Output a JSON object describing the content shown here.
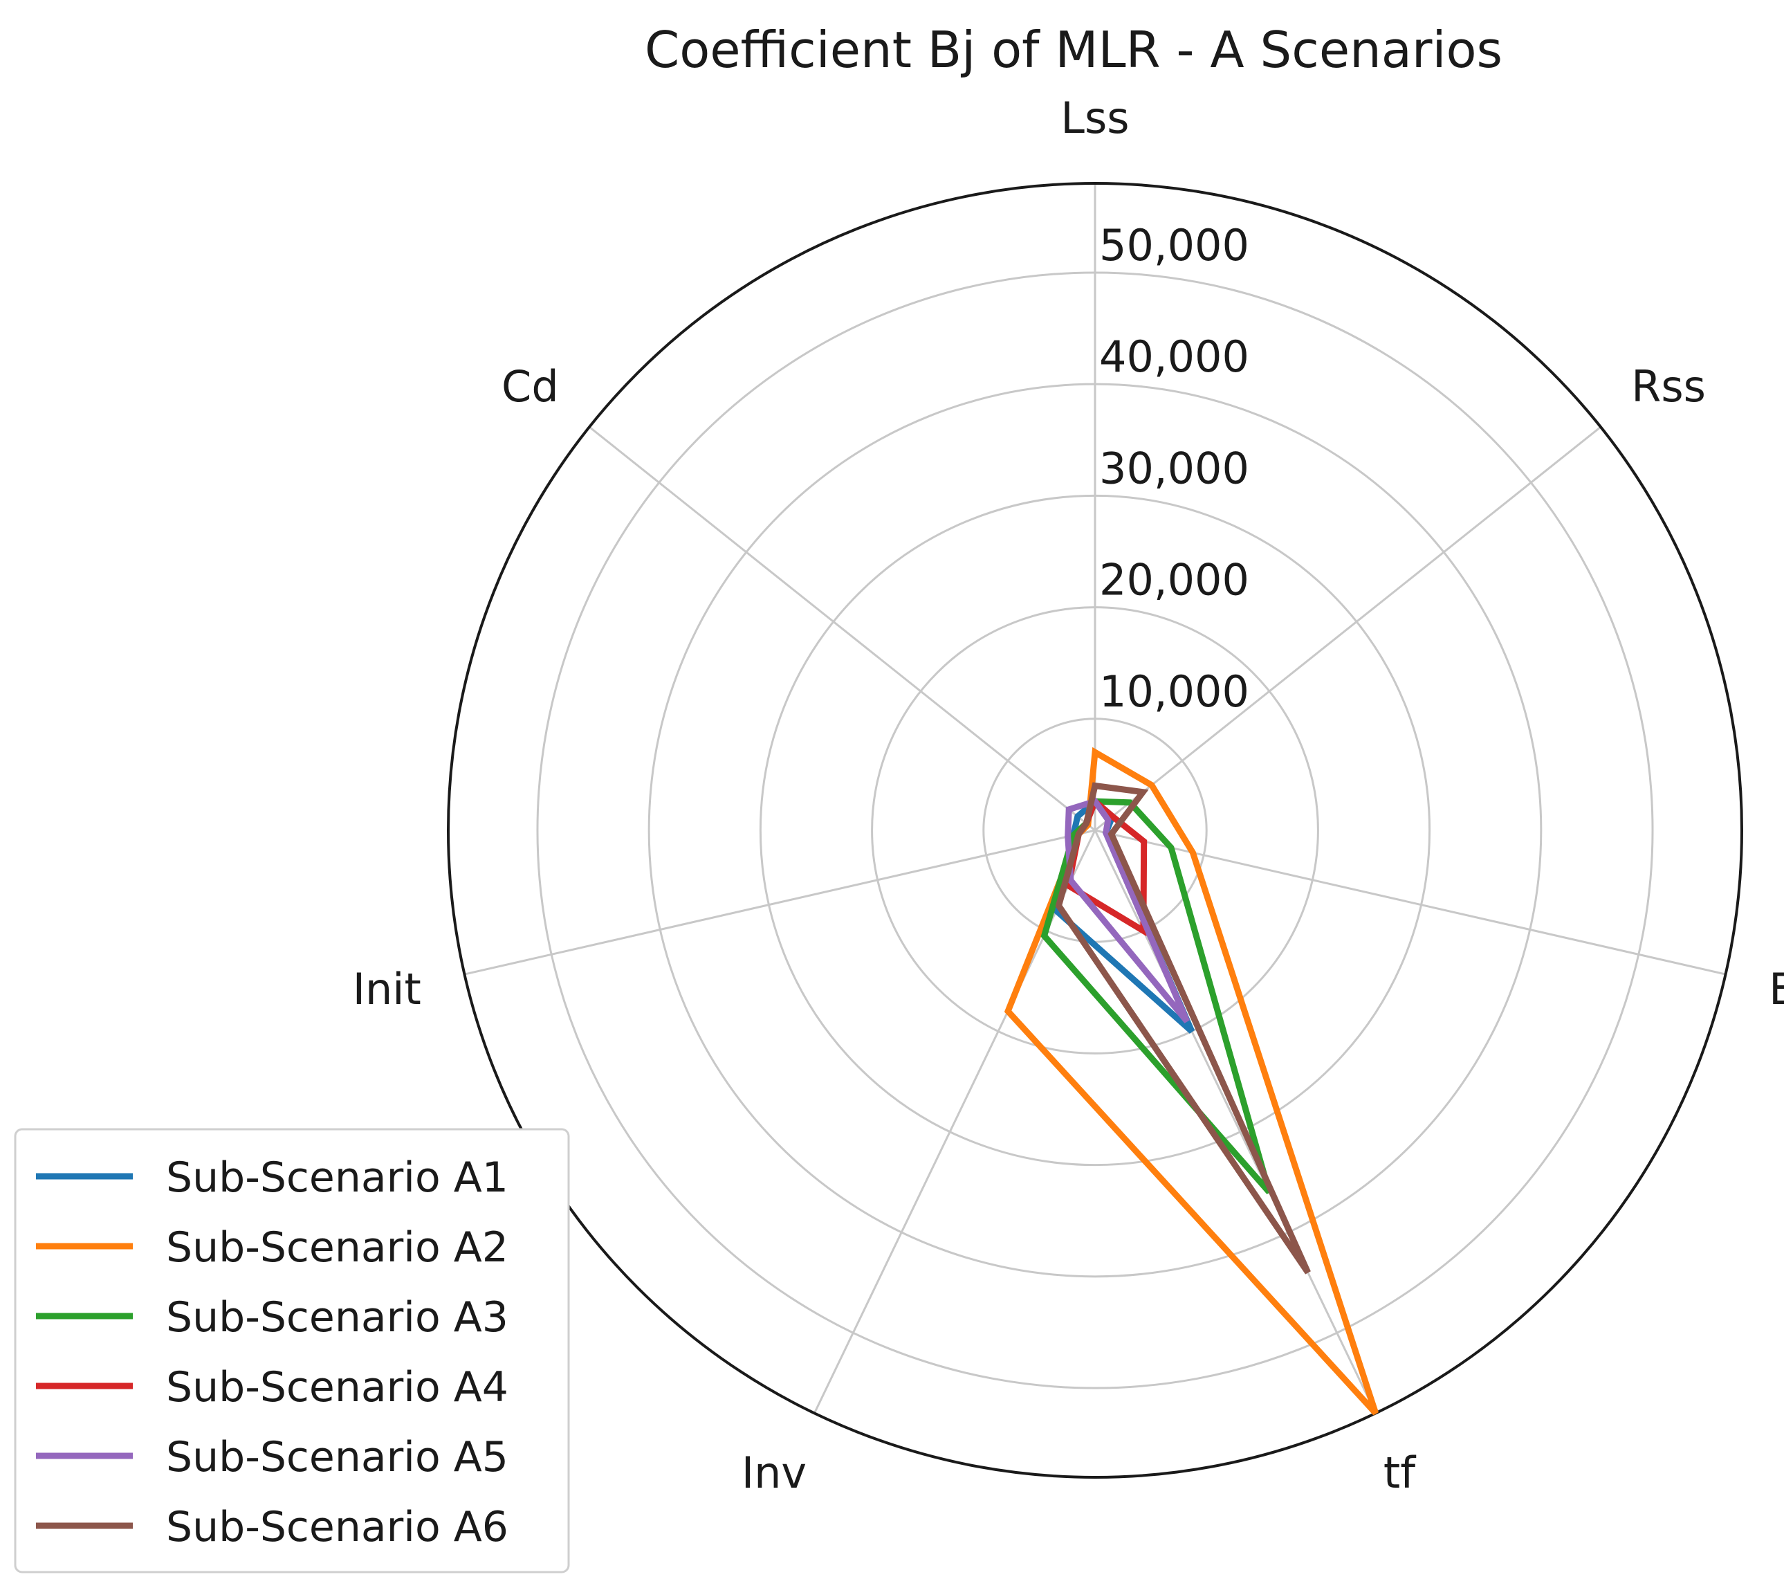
{
  "chart_data": {
    "type": "radar",
    "title": "Coefficient Bj of MLR - A Scenarios",
    "axes": [
      "Lss",
      "Rss",
      "B",
      "tf",
      "Inv",
      "Init",
      "Cd"
    ],
    "radial_ticks": [
      10000,
      20000,
      30000,
      40000,
      50000
    ],
    "radial_tick_labels": [
      "10,000",
      "20,000",
      "30,000",
      "40,000",
      "50,000"
    ],
    "rmax": 58000,
    "grid": true,
    "legend_position": "lower-left",
    "series": [
      {
        "name": "Sub-Scenario A1",
        "color": "#1f77b4",
        "values": [
          2600,
          2000,
          1000,
          20000,
          8000,
          2000,
          2000
        ]
      },
      {
        "name": "Sub-Scenario A2",
        "color": "#ff7f0e",
        "values": [
          7000,
          6500,
          9000,
          58000,
          18000,
          1500,
          800
        ]
      },
      {
        "name": "Sub-Scenario A3",
        "color": "#2ca02c",
        "values": [
          2600,
          4000,
          7000,
          36000,
          10500,
          2000,
          1000
        ]
      },
      {
        "name": "Sub-Scenario A4",
        "color": "#d62728",
        "values": [
          2600,
          2000,
          4500,
          10000,
          5500,
          1500,
          1000
        ]
      },
      {
        "name": "Sub-Scenario A5",
        "color": "#9467bd",
        "values": [
          2600,
          1500,
          1000,
          19000,
          5000,
          2500,
          3000
        ]
      },
      {
        "name": "Sub-Scenario A6",
        "color": "#8c564b",
        "values": [
          4000,
          5500,
          1500,
          44000,
          7500,
          1500,
          1000
        ]
      }
    ]
  }
}
